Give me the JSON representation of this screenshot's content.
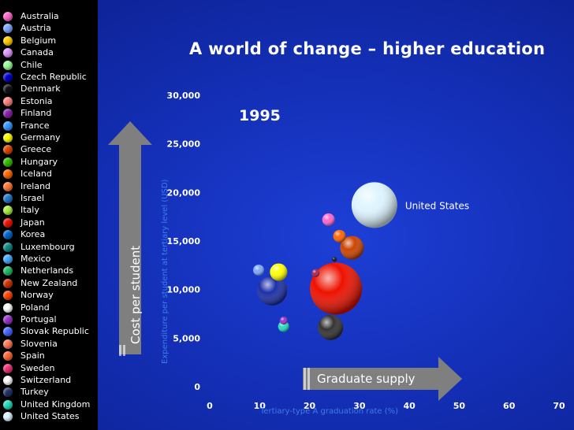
{
  "colors": {
    "background": "#1430b8",
    "legend_background": "#000000",
    "axis_label": "#3a7de8",
    "text": "#ffffff",
    "arrow": "#7f7f7f"
  },
  "legend": {
    "items": [
      {
        "label": "Australia",
        "color": "#ff66cc"
      },
      {
        "label": "Austria",
        "color": "#7fa7ff"
      },
      {
        "label": "Belgium",
        "color": "#ffcc00"
      },
      {
        "label": "Canada",
        "color": "#dd99ff"
      },
      {
        "label": "Chile",
        "color": "#99ff99"
      },
      {
        "label": "Czech Republic",
        "color": "#0000cc"
      },
      {
        "label": "Denmark",
        "color": "#111111"
      },
      {
        "label": "Estonia",
        "color": "#ff8080"
      },
      {
        "label": "Finland",
        "color": "#8822aa"
      },
      {
        "label": "France",
        "color": "#3399ff"
      },
      {
        "label": "Germany",
        "color": "#ffff00"
      },
      {
        "label": "Greece",
        "color": "#dd4400"
      },
      {
        "label": "Hungary",
        "color": "#33bb00"
      },
      {
        "label": "Iceland",
        "color": "#ff6600"
      },
      {
        "label": "Ireland",
        "color": "#ff7733"
      },
      {
        "label": "Israel",
        "color": "#2277cc"
      },
      {
        "label": "Italy",
        "color": "#aaee44"
      },
      {
        "label": "Japan",
        "color": "#ee1100"
      },
      {
        "label": "Korea",
        "color": "#0066cc"
      },
      {
        "label": "Luxembourg",
        "color": "#118888"
      },
      {
        "label": "Mexico",
        "color": "#44aaff"
      },
      {
        "label": "Netherlands",
        "color": "#22bb66"
      },
      {
        "label": "New Zealand",
        "color": "#cc3300"
      },
      {
        "label": "Norway",
        "color": "#ff4400"
      },
      {
        "label": "Poland",
        "color": "#ffffff"
      },
      {
        "label": "Portugal",
        "color": "#9933cc"
      },
      {
        "label": "Slovak Republic",
        "color": "#4466ff"
      },
      {
        "label": "Slovenia",
        "color": "#ff7755"
      },
      {
        "label": "Spain",
        "color": "#ff6633"
      },
      {
        "label": "Sweden",
        "color": "#ee3377"
      },
      {
        "label": "Switzerland",
        "color": "#ffffff"
      },
      {
        "label": "Turkey",
        "color": "#223366"
      },
      {
        "label": "United Kingdom",
        "color": "#22ddbb"
      },
      {
        "label": "United States",
        "color": "#ddf4ff"
      }
    ]
  },
  "arrows": {
    "vertical_label": "Cost per student",
    "horizontal_label": "Graduate supply"
  },
  "chart_data": {
    "type": "scatter",
    "title": "A world of change – higher education",
    "xlabel": "Tertiary-type A graduation rate (%)",
    "ylabel": "Expenditure per student at tertiary level (USD)",
    "xlim": [
      0,
      70
    ],
    "ylim": [
      0,
      30000
    ],
    "x_ticks": [
      "0",
      "10",
      "20",
      "30",
      "40",
      "50",
      "60",
      "70"
    ],
    "y_ticks": [
      "0",
      "5,000",
      "10,000",
      "15,000",
      "20,000",
      "25,000",
      "30,000"
    ],
    "annotation_year": "1995",
    "grid": false,
    "legend_position": "left",
    "points": [
      {
        "name": "United States",
        "x": 33,
        "y": 18700,
        "size": 29,
        "color": "#ddf4ff",
        "label": "United States"
      },
      {
        "name": "Australia",
        "x": 23.8,
        "y": 17200,
        "size": 8,
        "color": "#ff66cc"
      },
      {
        "name": "Iceland",
        "x": 26,
        "y": 15500,
        "size": 8,
        "color": "#ff6600"
      },
      {
        "name": "Ireland",
        "x": 28.5,
        "y": 14300,
        "size": 15,
        "color": "#cc4400"
      },
      {
        "name": "Denmark",
        "x": 25,
        "y": 13100,
        "size": 3,
        "color": "#111111"
      },
      {
        "name": "Mexico",
        "x": 9.8,
        "y": 12000,
        "size": 7,
        "color": "#7fa7ff"
      },
      {
        "name": "Germany",
        "x": 13.8,
        "y": 11800,
        "size": 11,
        "color": "#ffff00"
      },
      {
        "name": "Finland",
        "x": 21.2,
        "y": 11700,
        "size": 5,
        "color": "#aa2255"
      },
      {
        "name": "Japan",
        "x": 25.3,
        "y": 10100,
        "size": 33,
        "color": "#ee1100"
      },
      {
        "name": "France",
        "x": 12.5,
        "y": 9900,
        "size": 19,
        "color": "#1d2fa8"
      },
      {
        "name": "Portugal",
        "x": 14.8,
        "y": 6800,
        "size": 5,
        "color": "#9933cc"
      },
      {
        "name": "United Kingdom",
        "x": 14.8,
        "y": 6200,
        "size": 7,
        "color": "#22ddbb"
      },
      {
        "name": "Turkey",
        "x": 24.2,
        "y": 6100,
        "size": 16,
        "color": "#333333"
      }
    ]
  }
}
